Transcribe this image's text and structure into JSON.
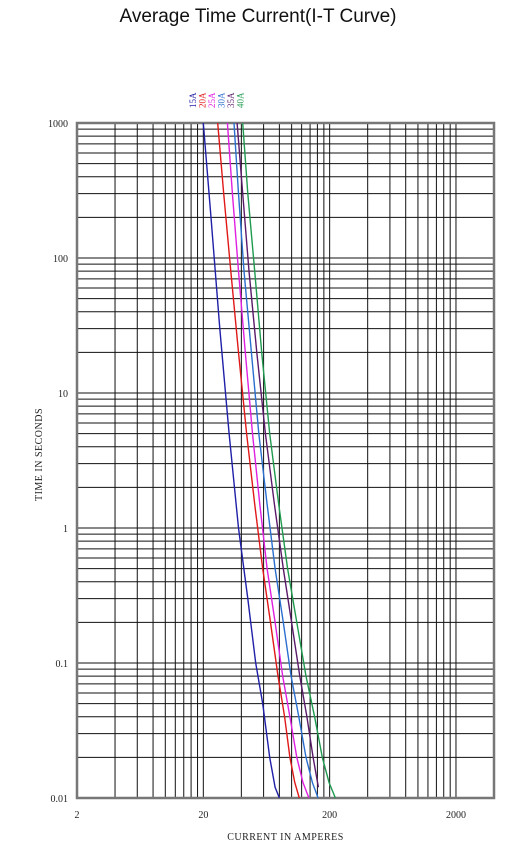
{
  "chart_data": {
    "type": "line",
    "title": "Average Time Current(I-T Curve)",
    "xlabel": "CURRENT IN AMPERES",
    "ylabel": "TIME IN SECONDS",
    "x_scale": "log",
    "y_scale": "log",
    "xlim": [
      2,
      4000
    ],
    "ylim": [
      0.01,
      1000
    ],
    "x_ticks": [
      2,
      20,
      200,
      2000
    ],
    "x_tick_labels": [
      "2",
      "20",
      "200",
      "2000"
    ],
    "y_ticks": [
      1000,
      100,
      10,
      1,
      0.1,
      0.01
    ],
    "y_tick_labels": [
      "1000",
      "100",
      "10",
      "1",
      "0.1",
      "0.01"
    ],
    "grid": true,
    "series": [
      {
        "name": "15A",
        "color": "#1f1fa8",
        "x": [
          20,
          23,
          27,
          32,
          38,
          45,
          52,
          59,
          67,
          74,
          80
        ],
        "y": [
          1000,
          200,
          30,
          5,
          1,
          0.3,
          0.1,
          0.05,
          0.02,
          0.012,
          0.01
        ]
      },
      {
        "name": "20A",
        "color": "#e01818",
        "x": [
          26,
          29,
          33,
          38,
          44,
          51,
          59,
          68,
          78,
          88,
          97,
          106,
          115
        ],
        "y": [
          1000,
          300,
          80,
          20,
          5,
          1.5,
          0.5,
          0.2,
          0.08,
          0.04,
          0.02,
          0.013,
          0.01
        ]
      },
      {
        "name": "25A",
        "color": "#e020e0",
        "x": [
          31,
          34,
          38,
          43,
          49,
          56,
          64,
          74,
          85,
          97,
          110,
          123,
          137
        ],
        "y": [
          1000,
          300,
          80,
          20,
          5,
          1.5,
          0.5,
          0.2,
          0.08,
          0.04,
          0.02,
          0.013,
          0.01
        ]
      },
      {
        "name": "30A",
        "color": "#2a6fcf",
        "x": [
          35,
          38,
          42,
          48,
          55,
          64,
          74,
          86,
          99,
          114,
          130,
          146,
          162
        ],
        "y": [
          1000,
          300,
          80,
          20,
          5,
          1.5,
          0.5,
          0.2,
          0.08,
          0.04,
          0.02,
          0.013,
          0.01
        ]
      },
      {
        "name": "35A",
        "color": "#5a1a6a",
        "x": [
          37,
          41,
          46,
          53,
          62,
          73,
          86,
          100,
          116,
          132,
          148,
          163
        ],
        "y": [
          1000,
          300,
          80,
          20,
          5,
          1.5,
          0.5,
          0.2,
          0.08,
          0.04,
          0.02,
          0.012
        ]
      },
      {
        "name": "40A",
        "color": "#1f9a4f",
        "x": [
          41,
          45,
          51,
          58,
          67,
          79,
          93,
          110,
          130,
          152,
          175,
          198,
          222
        ],
        "y": [
          1000,
          300,
          80,
          20,
          5,
          1.5,
          0.5,
          0.2,
          0.08,
          0.04,
          0.02,
          0.013,
          0.01
        ]
      }
    ]
  }
}
